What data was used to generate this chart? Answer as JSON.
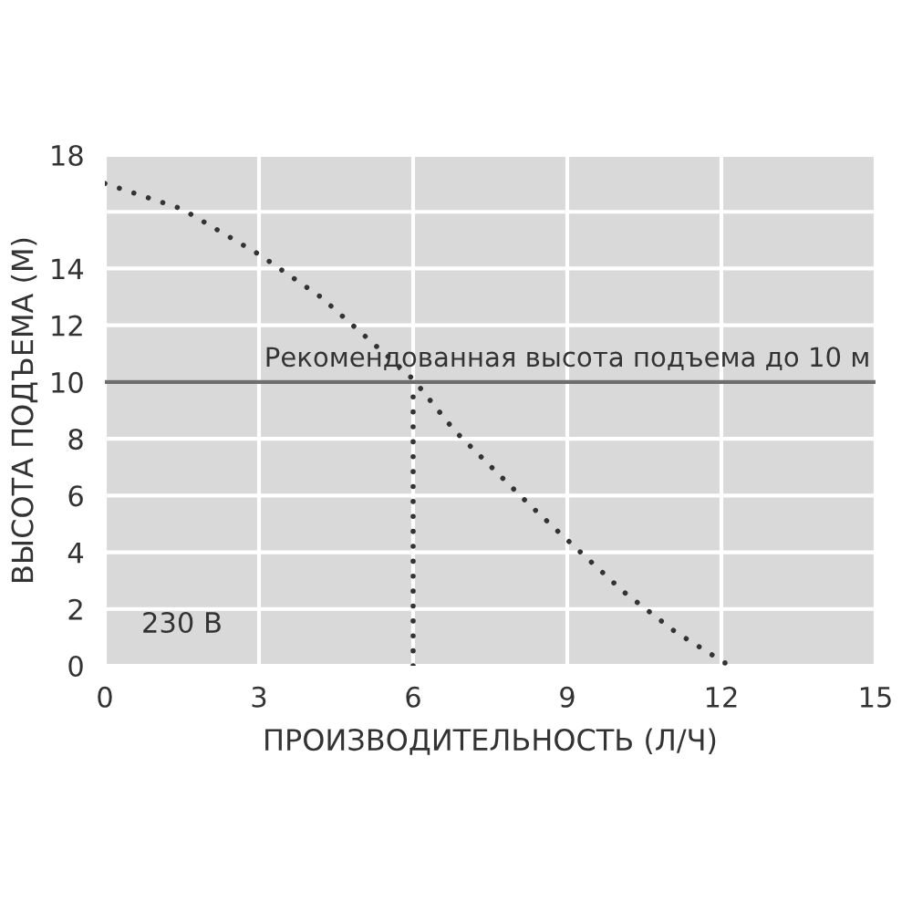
{
  "chart_data": {
    "type": "line",
    "xlabel": "ПРОИЗВОДИТЕЛЬНОСТЬ (Л/Ч)",
    "ylabel": "ВЫСОТА ПОДЪЕМА (М)",
    "series": [
      {
        "x": [
          0,
          1.5,
          3,
          4.2,
          5.2,
          6.0,
          6.8,
          8.25,
          8.96,
          10.1,
          11.1,
          12.07
        ],
        "values": [
          17.0,
          16.1,
          14.5,
          13.0,
          11.4,
          10.1,
          8.3,
          5.7,
          4.5,
          2.6,
          1.2,
          0.1
        ],
        "color": "#333333",
        "line_style": "dotted"
      },
      {
        "x": [
          6,
          6
        ],
        "values": [
          0,
          10
        ],
        "color": "#333333",
        "line_style": "dotted"
      }
    ],
    "xlim": [
      0,
      15
    ],
    "xticks": [
      0,
      3,
      6,
      9,
      12,
      15
    ],
    "ylim": [
      0,
      18
    ],
    "yticks": [
      0,
      2,
      4,
      6,
      8,
      10,
      12,
      14,
      {
        "value": 16,
        "label": null
      },
      18
    ],
    "grid": true,
    "marker": "none",
    "ref_lines": [
      {
        "axis": "y",
        "value": 10,
        "label": "Рекомендованная высота подъема до 10 м",
        "color": "#6e6e6e",
        "line_style": "solid"
      }
    ],
    "annotations": [
      "230 В"
    ]
  }
}
